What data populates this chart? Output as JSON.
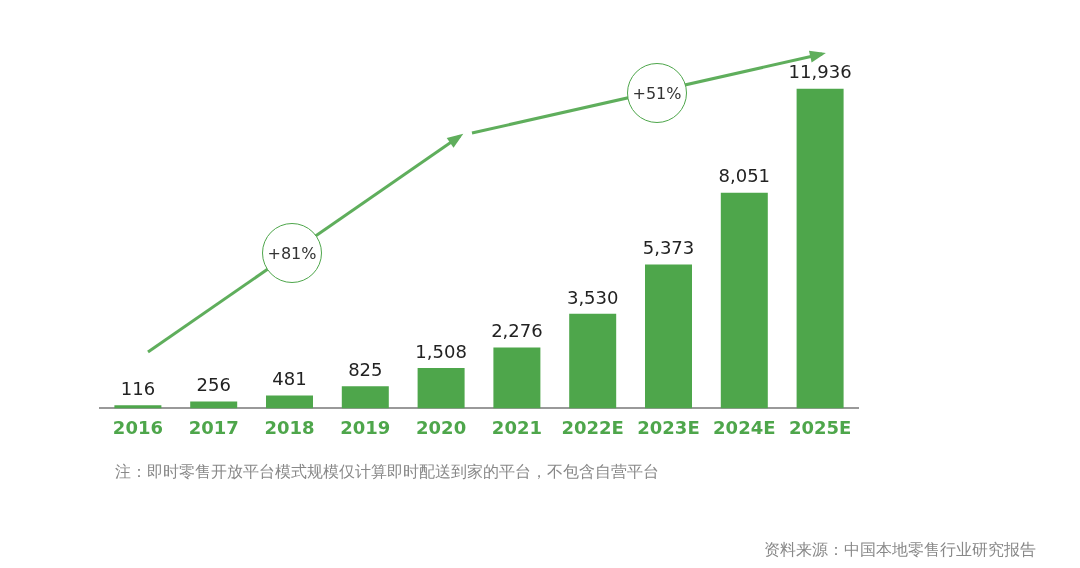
{
  "chart_data": {
    "type": "bar",
    "categories": [
      "2016",
      "2017",
      "2018",
      "2019",
      "2020",
      "2021",
      "2022E",
      "2023E",
      "2024E",
      "2025E"
    ],
    "values": [
      116,
      256,
      481,
      825,
      1508,
      2276,
      3530,
      5373,
      8051,
      11936
    ],
    "value_labels": [
      "116",
      "256",
      "481",
      "825",
      "1,508",
      "2,276",
      "3,530",
      "5,373",
      "8,051",
      "11,936"
    ],
    "color": "#4ea64b",
    "tick_labels": "x",
    "grid": false,
    "legend": false,
    "annotations": [
      "+81%",
      "+51%",
      "注：即时零售开放平台模式规模仅计算即时配送到家的平台，不包含自营平台",
      "资料来源：中国本地零售行业研究报告"
    ]
  }
}
